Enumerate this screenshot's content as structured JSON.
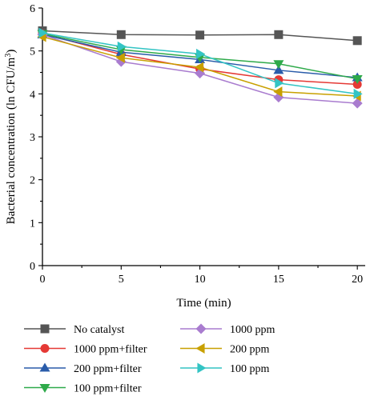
{
  "chart_data": {
    "type": "line",
    "xlabel": "Time (min)",
    "ylabel_main": "Bacterial concentration (ln CFU/m",
    "ylabel_sup": "3",
    "ylabel_close": ")",
    "xlim": [
      0,
      20.5
    ],
    "ylim": [
      0,
      6
    ],
    "x": [
      0,
      5,
      10,
      15,
      20
    ],
    "xticks": [
      0,
      5,
      10,
      15,
      20
    ],
    "yticks": [
      0,
      1,
      2,
      3,
      4,
      5,
      6
    ],
    "grid": false,
    "legend_position": "bottom",
    "series": [
      {
        "name": "No catalyst",
        "marker": "square",
        "color": "#555555",
        "values": [
          5.47,
          5.38,
          5.37,
          5.38,
          5.24
        ]
      },
      {
        "name": "1000 ppm+filter",
        "marker": "circle",
        "color": "#e53935",
        "values": [
          5.4,
          4.92,
          4.58,
          4.33,
          4.22
        ]
      },
      {
        "name": "200 ppm+filter",
        "marker": "triangle-up",
        "color": "#2a5caa",
        "values": [
          5.38,
          4.97,
          4.8,
          4.55,
          4.38
        ]
      },
      {
        "name": "100 ppm+filter",
        "marker": "triangle-down",
        "color": "#2eaa4a",
        "values": [
          5.4,
          5.03,
          4.85,
          4.7,
          4.35
        ]
      },
      {
        "name": "1000 ppm",
        "marker": "diamond",
        "color": "#a97ccf",
        "values": [
          5.38,
          4.75,
          4.48,
          3.92,
          3.78
        ]
      },
      {
        "name": "200 ppm",
        "marker": "triangle-left",
        "color": "#c8a000",
        "values": [
          5.33,
          4.84,
          4.62,
          4.05,
          3.95
        ]
      },
      {
        "name": "100 ppm",
        "marker": "triangle-right",
        "color": "#33c4c4",
        "values": [
          5.42,
          5.1,
          4.93,
          4.25,
          4.0
        ]
      }
    ]
  }
}
